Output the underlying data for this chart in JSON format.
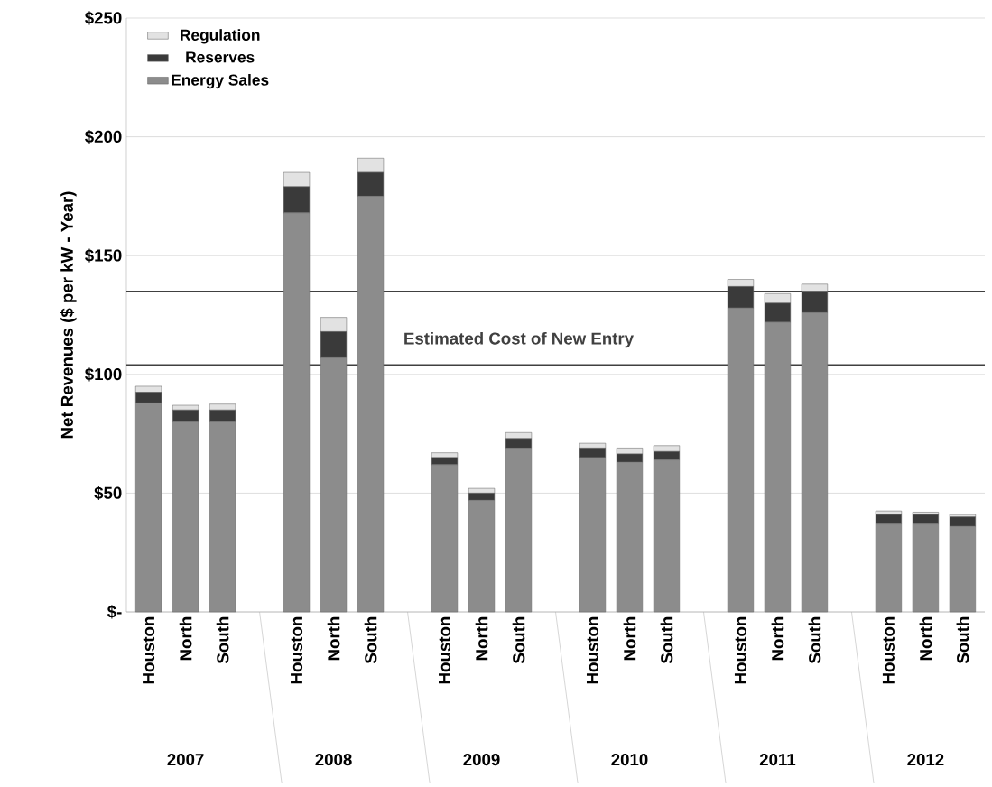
{
  "chart_data": {
    "type": "bar",
    "stacked": true,
    "ylabel": "Net Revenues ($ per kW - Year)",
    "categories": [
      "Houston",
      "North",
      "South",
      null,
      "Houston",
      "North",
      "South",
      null,
      "Houston",
      "North",
      "South",
      null,
      "Houston",
      "North",
      "South",
      null,
      "Houston",
      "North",
      "South",
      null,
      "Houston",
      "North",
      "South"
    ],
    "series": [
      {
        "name": "Energy Sales",
        "color": "#8c8c8c",
        "values": [
          88,
          80,
          80,
          null,
          168,
          107,
          175,
          null,
          62,
          47,
          69,
          null,
          65,
          63,
          64,
          null,
          128,
          122,
          126,
          null,
          37,
          37,
          36
        ]
      },
      {
        "name": "Reserves",
        "color": "#3a3a3a",
        "values": [
          4.5,
          5,
          5,
          null,
          11,
          11,
          10,
          null,
          3,
          3,
          4,
          null,
          4,
          3.5,
          3.5,
          null,
          9,
          8,
          9,
          null,
          4,
          4,
          4
        ]
      },
      {
        "name": "Regulation",
        "color": "#e2e2e2",
        "values": [
          2.5,
          2,
          2.5,
          null,
          6,
          6,
          6,
          null,
          2,
          2,
          2.5,
          null,
          2,
          2.5,
          2.5,
          null,
          3,
          4,
          3,
          null,
          1.5,
          1,
          1
        ]
      }
    ],
    "ylim": [
      0,
      250
    ],
    "yticks": [
      {
        "value": 0,
        "label": "$-"
      },
      {
        "value": 50,
        "label": "$50"
      },
      {
        "value": 100,
        "label": "$100"
      },
      {
        "value": 150,
        "label": "$150"
      },
      {
        "value": 200,
        "label": "$200"
      },
      {
        "value": 250,
        "label": "$250"
      }
    ],
    "grid": "y",
    "legend": "top left",
    "ref_lines": [
      {
        "axis": "y",
        "value": 104,
        "label": "Estimated Cost of New Entry",
        "color": "#404040"
      },
      {
        "axis": "y",
        "value": 135,
        "color": "#404040"
      }
    ],
    "annotations": [
      "2007",
      "2008",
      "2009",
      "2010",
      "2011",
      "2012"
    ]
  }
}
